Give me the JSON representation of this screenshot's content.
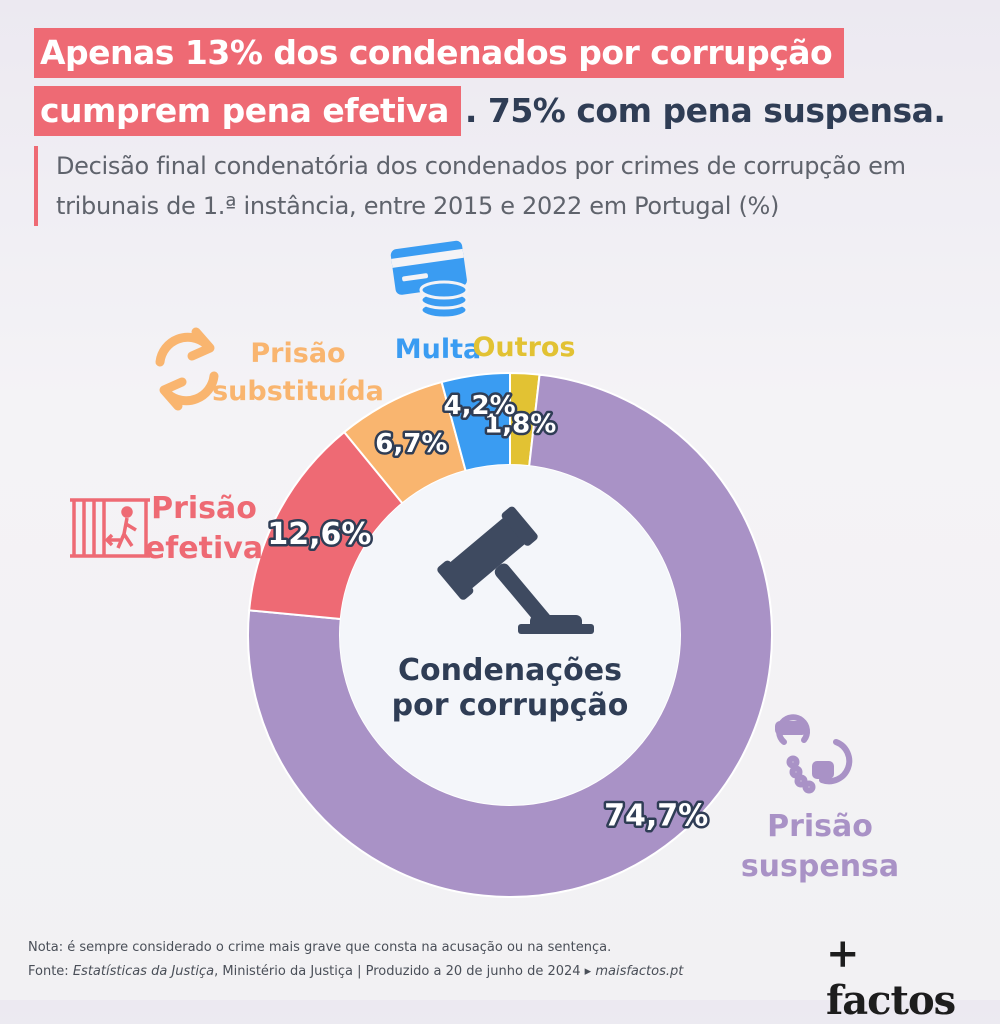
{
  "title": {
    "highlight_line1": "Apenas 13% dos condenados por corrupção",
    "highlight_line2": "cumprem pena efetiva",
    "rest_line2": ". 75% com pena suspensa."
  },
  "subtitle": "Decisão final condenatória dos condenados por crimes de corrupção em tribunais de 1.ª instância, entre 2015 e 2022 em Portugal (%)",
  "center_label": [
    "Condenações",
    "por corrupção"
  ],
  "chart_data": {
    "type": "pie",
    "donut": true,
    "start_angle_deg": 0,
    "direction": "clockwise",
    "title": "Decisão final condenatória dos condenados por crimes de corrupção em tribunais de 1.ª instância, entre 2015 e 2022 em Portugal (%)",
    "unit": "%",
    "slices": [
      {
        "name": "Outros",
        "value": 1.8,
        "value_label": "1,8%",
        "color": "#e2c233"
      },
      {
        "name": "Prisão suspensa",
        "value": 74.7,
        "value_label": "74,7%",
        "color": "#a992c6"
      },
      {
        "name": "Prisão efetiva",
        "value": 12.6,
        "value_label": "12,6%",
        "color": "#ee6a74"
      },
      {
        "name": "Prisão substituída",
        "value": 6.7,
        "value_label": "6,7%",
        "color": "#f9b56f"
      },
      {
        "name": "Multa",
        "value": 4.2,
        "value_label": "4,2%",
        "color": "#3a9cf2"
      }
    ]
  },
  "category_labels": {
    "multa": "Multa",
    "outros": "Outros",
    "substituida": [
      "Prisão",
      "substituída"
    ],
    "efetiva": [
      "Prisão",
      "efetiva"
    ],
    "suspensa": [
      "Prisão",
      "suspensa"
    ]
  },
  "icons": [
    "credit-card-coins-icon",
    "swap-arrows-icon",
    "prison-exit-icon",
    "handcuffs-icon",
    "gavel-icon"
  ],
  "footer": {
    "note": "Nota: é sempre considerado o crime mais grave que consta na acusação ou na sentença.",
    "source_prefix": "Fonte: ",
    "source_name": "Estatísticas da Justiça",
    "source_rest": ", Ministério da Justiça | Produzido a 20 de junho de 2024 ▸ ",
    "site": "maisfactos.pt"
  },
  "logo": "+ factos",
  "colors": {
    "highlight": "#ee6a74",
    "title_text": "#2f3d55",
    "suspensa": "#a992c6",
    "efetiva": "#ee6a74",
    "substituida": "#f9b56f",
    "multa": "#3a9cf2",
    "outros": "#e2c233"
  }
}
